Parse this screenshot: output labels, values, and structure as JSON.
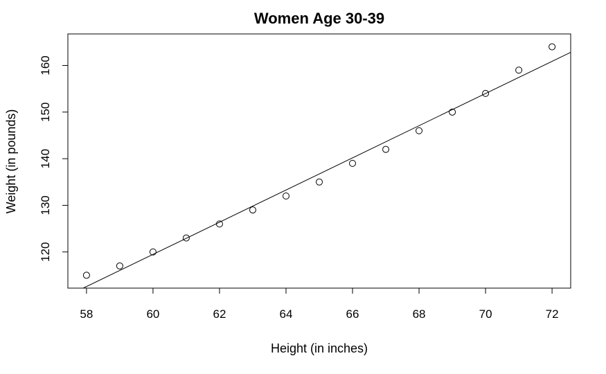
{
  "chart_data": {
    "type": "scatter",
    "title": "Women Age 30-39",
    "xlabel": "Height (in inches)",
    "ylabel": "Weight (in pounds)",
    "xlim": [
      57.44,
      72.56
    ],
    "ylim": [
      112.24,
      166.76
    ],
    "x_ticks": [
      58,
      60,
      62,
      64,
      66,
      68,
      70,
      72
    ],
    "y_ticks": [
      120,
      130,
      140,
      150,
      160
    ],
    "grid": false,
    "series": [
      {
        "x": [
          58,
          59,
          60,
          61,
          62,
          63,
          64,
          65,
          66,
          67,
          68,
          69,
          70,
          71,
          72
        ],
        "y": [
          115,
          117,
          120,
          123,
          126,
          129,
          132,
          135,
          139,
          142,
          146,
          150,
          154,
          159,
          164
        ],
        "marker": "open-circle",
        "color": "#000000"
      }
    ],
    "fit_line": {
      "intercept": -87.52,
      "slope": 3.45,
      "color": "#000000"
    }
  }
}
